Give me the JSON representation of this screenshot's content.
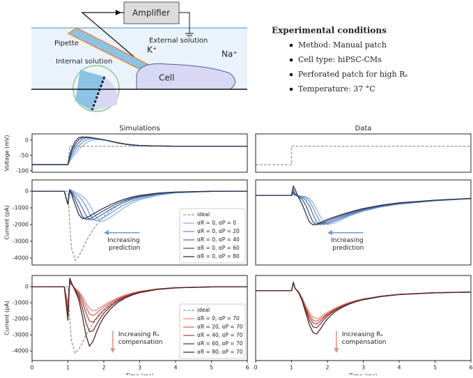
{
  "diagram": {
    "amplifier": "Amplifier",
    "external": "External solution",
    "pipette": "Pipette",
    "internal": "Internal solution",
    "k": "K⁺",
    "na": "Na⁺",
    "cell": "Cell"
  },
  "conditions": {
    "title": "Experimental conditions",
    "items": [
      "Method: Manual patch",
      "Cell type: hiPSC-CMs",
      "Perforated patch for high Rₛ",
      "Temperature: 37 °C"
    ]
  },
  "chart_data": [
    {
      "type": "line",
      "title": "Simulations",
      "ylabel": "Voltage (mV)",
      "xlim": [
        0,
        6
      ],
      "ylim": [
        -105,
        20
      ],
      "yticks": [
        -100,
        -50,
        0
      ],
      "x": [
        0,
        0.9,
        1,
        1.05,
        1.1,
        1.2,
        1.3,
        1.4,
        1.5,
        1.6,
        1.7,
        1.8,
        1.9,
        2,
        2.2,
        2.4,
        2.6,
        2.8,
        3,
        3.5,
        4,
        5,
        6
      ],
      "series": [
        {
          "color": "#999999",
          "dash": true,
          "values": [
            -80,
            -80,
            -80,
            -20,
            -20,
            -20,
            -20,
            -20,
            -20,
            -20,
            -20,
            -20,
            -20,
            -20,
            -20,
            -20,
            -20,
            -20,
            -20,
            -20,
            -20,
            -20,
            -20
          ]
        },
        {
          "color": "#8fb4e3",
          "values": [
            -80,
            -80,
            -80,
            -70,
            -60,
            -45,
            -32,
            -20,
            -10,
            -3,
            0,
            1,
            1,
            0,
            -5,
            -10,
            -14,
            -17,
            -18,
            -19.5,
            -20,
            -20,
            -20
          ]
        },
        {
          "color": "#6c97d4",
          "values": [
            -80,
            -80,
            -80,
            -66,
            -52,
            -35,
            -20,
            -8,
            0,
            4,
            5,
            4,
            3,
            1,
            -4,
            -10,
            -14,
            -17,
            -18,
            -19.5,
            -20,
            -20,
            -20
          ]
        },
        {
          "color": "#4f77b5",
          "values": [
            -80,
            -80,
            -80,
            -60,
            -45,
            -25,
            -9,
            2,
            7,
            8,
            7,
            5,
            3,
            1,
            -4,
            -9,
            -13,
            -16,
            -18,
            -19.5,
            -20,
            -20,
            -20
          ]
        },
        {
          "color": "#3a5588",
          "values": [
            -80,
            -80,
            -80,
            -55,
            -38,
            -15,
            1,
            8,
            10,
            9,
            7,
            5,
            3,
            1,
            -4,
            -9,
            -13,
            -16,
            -18,
            -19.5,
            -20,
            -20,
            -20
          ]
        },
        {
          "color": "#2b3347",
          "values": [
            -80,
            -80,
            -80,
            -50,
            -30,
            -5,
            8,
            10,
            9,
            8,
            6,
            4,
            3,
            1,
            -4,
            -9,
            -13,
            -16,
            -18,
            -19.5,
            -20,
            -20,
            -20
          ]
        }
      ]
    },
    {
      "type": "line",
      "title": "Data",
      "xlim": [
        0,
        6
      ],
      "ylim": [
        -105,
        20
      ],
      "x": [
        0,
        1,
        1,
        6
      ],
      "series": [
        {
          "color": "#999999",
          "dash": true,
          "values": [
            -80,
            -80,
            -20,
            -20
          ]
        }
      ]
    },
    {
      "type": "line",
      "ylabel": "Current (pA)",
      "xlim": [
        0,
        6
      ],
      "ylim": [
        -4420,
        670
      ],
      "yticks": [
        -4000,
        -3000,
        -2000,
        -1000,
        0
      ],
      "legend": "lower right",
      "annotation": [
        "Increasing",
        "prediction"
      ],
      "arrow": "left",
      "x": [
        0,
        0.9,
        1,
        1.05,
        1.1,
        1.2,
        1.3,
        1.4,
        1.5,
        1.6,
        1.7,
        1.8,
        1.9,
        2,
        2.2,
        2.4,
        2.6,
        2.8,
        3,
        3.5,
        4,
        5,
        6
      ],
      "series": [
        {
          "name": "ideal",
          "color": "#999999",
          "dash": true,
          "values": [
            0,
            0,
            0,
            -2000,
            -3400,
            -4150,
            -3900,
            -3500,
            -3050,
            -2650,
            -2300,
            -2000,
            -1750,
            -1500,
            -1150,
            -850,
            -620,
            -450,
            -330,
            -150,
            -70,
            -15,
            0
          ]
        },
        {
          "name": "αR = 0, αP = 0",
          "color": "#8fb4e3",
          "values": [
            0,
            0,
            -800,
            100,
            50,
            -50,
            -150,
            -300,
            -500,
            -800,
            -1200,
            -1600,
            -1800,
            -1780,
            -1550,
            -1250,
            -950,
            -700,
            -520,
            -250,
            -110,
            -20,
            0
          ]
        },
        {
          "name": "αR = 0, αP = 20",
          "color": "#6c97d4",
          "values": [
            0,
            0,
            -800,
            100,
            0,
            -150,
            -300,
            -550,
            -900,
            -1350,
            -1700,
            -1780,
            -1700,
            -1580,
            -1300,
            -1020,
            -780,
            -590,
            -440,
            -210,
            -90,
            -15,
            0
          ]
        },
        {
          "name": "αR = 0, αP = 40",
          "color": "#4f77b5",
          "values": [
            0,
            0,
            -800,
            80,
            -50,
            -300,
            -600,
            -1000,
            -1450,
            -1720,
            -1700,
            -1600,
            -1470,
            -1330,
            -1070,
            -840,
            -640,
            -480,
            -360,
            -170,
            -75,
            -12,
            0
          ]
        },
        {
          "name": "αR = 0, αP = 60",
          "color": "#3a5588",
          "values": [
            0,
            0,
            -800,
            60,
            -100,
            -500,
            -1000,
            -1500,
            -1700,
            -1650,
            -1550,
            -1420,
            -1290,
            -1160,
            -930,
            -720,
            -550,
            -410,
            -310,
            -150,
            -65,
            -10,
            0
          ]
        },
        {
          "name": "αR = 0, αP = 80",
          "color": "#2b3347",
          "values": [
            0,
            0,
            -800,
            40,
            -200,
            -800,
            -1400,
            -1650,
            -1600,
            -1500,
            -1380,
            -1250,
            -1130,
            -1010,
            -800,
            -620,
            -470,
            -350,
            -260,
            -120,
            -50,
            -8,
            0
          ]
        }
      ]
    },
    {
      "type": "line",
      "xlim": [
        0,
        6
      ],
      "ylim": [
        -4420,
        670
      ],
      "annotation": [
        "Increasing",
        "prediction"
      ],
      "arrow": "left",
      "x": [
        0,
        0.9,
        1,
        1.05,
        1.1,
        1.2,
        1.3,
        1.4,
        1.5,
        1.6,
        1.7,
        1.8,
        1.9,
        2,
        2.2,
        2.4,
        2.6,
        2.8,
        3,
        3.5,
        4,
        5,
        6
      ],
      "series": [
        {
          "color": "#8fb4e3",
          "values": [
            -250,
            -250,
            -250,
            -200,
            -250,
            -280,
            -300,
            -350,
            -450,
            -700,
            -1100,
            -1500,
            -1850,
            -2000,
            -1900,
            -1700,
            -1500,
            -1350,
            -1200,
            -950,
            -780,
            -580,
            -450
          ]
        },
        {
          "color": "#6c97d4",
          "values": [
            -250,
            -250,
            -250,
            -150,
            -250,
            -300,
            -330,
            -400,
            -600,
            -1000,
            -1450,
            -1850,
            -2000,
            -1950,
            -1800,
            -1620,
            -1450,
            -1300,
            -1170,
            -930,
            -760,
            -570,
            -450
          ]
        },
        {
          "color": "#4f77b5",
          "values": [
            -250,
            -250,
            -250,
            100,
            -150,
            -320,
            -380,
            -550,
            -900,
            -1400,
            -1850,
            -2000,
            -1950,
            -1880,
            -1720,
            -1550,
            -1400,
            -1260,
            -1130,
            -900,
            -740,
            -560,
            -440
          ]
        },
        {
          "color": "#3a5588",
          "values": [
            -250,
            -250,
            -250,
            -50,
            -200,
            -350,
            -500,
            -850,
            -1400,
            -1850,
            -2000,
            -1960,
            -1880,
            -1780,
            -1620,
            -1470,
            -1330,
            -1200,
            -1080,
            -860,
            -720,
            -550,
            -440
          ]
        },
        {
          "color": "#2b3347",
          "values": [
            -250,
            -250,
            -250,
            300,
            100,
            -400,
            -800,
            -1350,
            -1850,
            -2020,
            -1980,
            -1880,
            -1790,
            -1690,
            -1540,
            -1400,
            -1270,
            -1150,
            -1040,
            -840,
            -700,
            -540,
            -430
          ]
        }
      ]
    },
    {
      "type": "line",
      "ylabel": "Current (pA)",
      "xlabel": "Time (ms)",
      "xlim": [
        0,
        6
      ],
      "xticks": [
        0,
        1,
        2,
        3,
        4,
        5,
        6
      ],
      "ylim": [
        -4600,
        700
      ],
      "yticks": [
        -4000,
        -3000,
        -2000,
        -1000,
        0
      ],
      "legend": "lower right",
      "annotation": [
        "Increasing Rₛ",
        "compensation"
      ],
      "arrow": "down",
      "x": [
        0,
        0.9,
        1,
        1.05,
        1.1,
        1.2,
        1.3,
        1.4,
        1.5,
        1.6,
        1.7,
        1.8,
        1.9,
        2,
        2.2,
        2.4,
        2.6,
        2.8,
        3,
        3.5,
        4,
        5,
        6
      ],
      "series": [
        {
          "name": "ideal",
          "color": "#999999",
          "dash": true,
          "values": [
            0,
            0,
            0,
            -2000,
            -3400,
            -4150,
            -3900,
            -3500,
            -3050,
            -2650,
            -2300,
            -2000,
            -1750,
            -1500,
            -1150,
            -850,
            -620,
            -450,
            -330,
            -150,
            -70,
            -15,
            0
          ]
        },
        {
          "name": "αR = 0, αP = 70",
          "color": "#f08a7a",
          "values": [
            0,
            0,
            -1000,
            200,
            100,
            -100,
            -300,
            -600,
            -1000,
            -1350,
            -1500,
            -1450,
            -1300,
            -1150,
            -900,
            -680,
            -510,
            -380,
            -280,
            -130,
            -55,
            -10,
            0
          ]
        },
        {
          "name": "αR = 20, αP = 70",
          "color": "#d96a5e",
          "values": [
            0,
            0,
            -1200,
            300,
            150,
            -100,
            -350,
            -750,
            -1250,
            -1700,
            -1800,
            -1650,
            -1450,
            -1270,
            -980,
            -740,
            -550,
            -410,
            -300,
            -140,
            -60,
            -10,
            0
          ]
        },
        {
          "name": "αR = 40, αP = 70",
          "color": "#b04a45",
          "values": [
            0,
            0,
            -1500,
            350,
            150,
            -150,
            -450,
            -950,
            -1600,
            -2150,
            -2200,
            -1950,
            -1680,
            -1440,
            -1080,
            -800,
            -590,
            -440,
            -320,
            -150,
            -65,
            -10,
            0
          ]
        },
        {
          "name": "αR = 60, αP = 70",
          "color": "#7d3232",
          "values": [
            0,
            0,
            -1800,
            450,
            200,
            -200,
            -600,
            -1300,
            -2200,
            -2800,
            -2750,
            -2350,
            -1970,
            -1650,
            -1200,
            -880,
            -640,
            -470,
            -340,
            -160,
            -70,
            -12,
            0
          ]
        },
        {
          "name": "αR = 80, αP = 70",
          "color": "#4a2525",
          "values": [
            0,
            0,
            -2100,
            550,
            250,
            -250,
            -800,
            -1800,
            -3000,
            -3700,
            -3400,
            -2800,
            -2300,
            -1900,
            -1350,
            -970,
            -700,
            -510,
            -370,
            -170,
            -75,
            -12,
            0
          ]
        }
      ]
    },
    {
      "type": "line",
      "xlabel": "Time (ms)",
      "xlim": [
        0,
        6
      ],
      "xticks": [
        0,
        1,
        2,
        3,
        4,
        5,
        6
      ],
      "ylim": [
        -4600,
        700
      ],
      "annotation": [
        "Increasing Rₛ",
        "compensation"
      ],
      "arrow": "down",
      "x": [
        0,
        0.9,
        1,
        1.05,
        1.1,
        1.2,
        1.3,
        1.4,
        1.5,
        1.6,
        1.7,
        1.8,
        1.9,
        2,
        2.2,
        2.4,
        2.6,
        2.8,
        3,
        3.5,
        4,
        5,
        6
      ],
      "series": [
        {
          "color": "#f08a7a",
          "values": [
            -250,
            -250,
            -250,
            200,
            -100,
            -300,
            -700,
            -1200,
            -1600,
            -1900,
            -2000,
            -1900,
            -1750,
            -1600,
            -1350,
            -1150,
            -990,
            -860,
            -760,
            -580,
            -470,
            -370,
            -330
          ]
        },
        {
          "color": "#d96a5e",
          "values": [
            -250,
            -250,
            -250,
            220,
            -100,
            -320,
            -750,
            -1300,
            -1750,
            -2080,
            -2150,
            -2020,
            -1840,
            -1670,
            -1400,
            -1180,
            -1010,
            -880,
            -770,
            -590,
            -475,
            -375,
            -335
          ]
        },
        {
          "color": "#b04a45",
          "values": [
            -250,
            -250,
            -250,
            240,
            -100,
            -340,
            -800,
            -1400,
            -1900,
            -2250,
            -2320,
            -2150,
            -1930,
            -1740,
            -1440,
            -1210,
            -1030,
            -890,
            -780,
            -595,
            -480,
            -375,
            -335
          ]
        },
        {
          "color": "#7d3232",
          "values": [
            -250,
            -250,
            -250,
            260,
            -100,
            -360,
            -850,
            -1500,
            -2100,
            -2500,
            -2550,
            -2330,
            -2060,
            -1830,
            -1490,
            -1240,
            -1050,
            -900,
            -790,
            -600,
            -485,
            -378,
            -338
          ]
        },
        {
          "color": "#4a2525",
          "values": [
            -250,
            -250,
            -250,
            280,
            -80,
            -380,
            -900,
            -1650,
            -2400,
            -2850,
            -2950,
            -2650,
            -2300,
            -2000,
            -1580,
            -1300,
            -1090,
            -930,
            -810,
            -610,
            -490,
            -380,
            -340
          ]
        }
      ]
    }
  ]
}
